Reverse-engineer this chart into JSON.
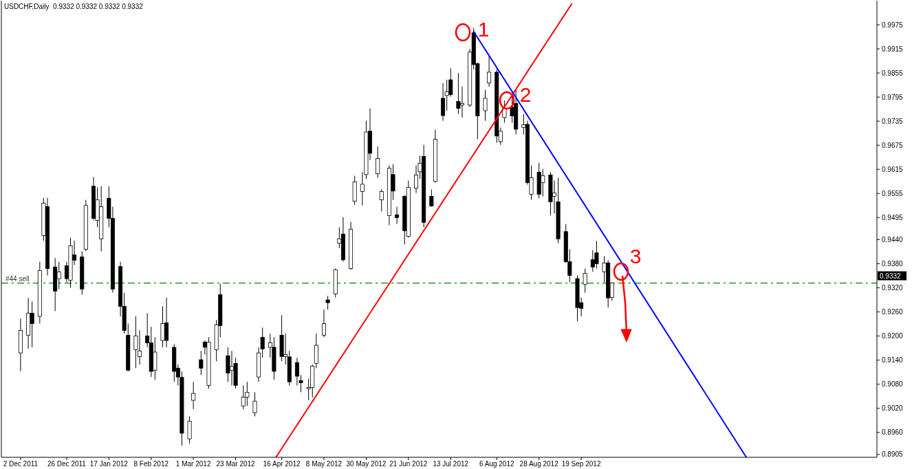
{
  "chart_data": {
    "type": "candlestick",
    "title": "USDCHF,Daily  0.9332 0.9332 0.9332 0.9332",
    "color": "#000000",
    "x": [
      "2011-12-02",
      "2011-12-06",
      "2011-12-08",
      "2011-12-12",
      "2011-12-14",
      "2011-12-16",
      "2011-12-20",
      "2011-12-22",
      "2011-12-26",
      "2011-12-28",
      "2011-12-30",
      "2012-01-03",
      "2012-01-05",
      "2012-01-09",
      "2012-01-11",
      "2012-01-13",
      "2012-01-17",
      "2012-01-19",
      "2012-01-23",
      "2012-01-25",
      "2012-01-27",
      "2012-01-31",
      "2012-02-02",
      "2012-02-06",
      "2012-02-08",
      "2012-02-10",
      "2012-02-14",
      "2012-02-16",
      "2012-02-20",
      "2012-02-22",
      "2012-02-24",
      "2012-02-28",
      "2012-03-01",
      "2012-03-05",
      "2012-03-07",
      "2012-03-09",
      "2012-03-13",
      "2012-03-15",
      "2012-03-19",
      "2012-03-21",
      "2012-03-23",
      "2012-03-27",
      "2012-03-29",
      "2012-04-02",
      "2012-04-04",
      "2012-04-06",
      "2012-04-10",
      "2012-04-12",
      "2012-04-16",
      "2012-04-18",
      "2012-04-20",
      "2012-04-24",
      "2012-04-26",
      "2012-04-30",
      "2012-05-02",
      "2012-05-04",
      "2012-05-08",
      "2012-05-10",
      "2012-05-14",
      "2012-05-16",
      "2012-05-18",
      "2012-05-22",
      "2012-05-24",
      "2012-05-28",
      "2012-05-30",
      "2012-06-01",
      "2012-06-05",
      "2012-06-07",
      "2012-06-11",
      "2012-06-13",
      "2012-06-15",
      "2012-06-19",
      "2012-06-21",
      "2012-06-25",
      "2012-06-27",
      "2012-06-29",
      "2012-07-03",
      "2012-07-05",
      "2012-07-09",
      "2012-07-11",
      "2012-07-13",
      "2012-07-17",
      "2012-07-19",
      "2012-07-23",
      "2012-07-25",
      "2012-07-27",
      "2012-07-31",
      "2012-08-02",
      "2012-08-06",
      "2012-08-08",
      "2012-08-10",
      "2012-08-14",
      "2012-08-16",
      "2012-08-20",
      "2012-08-22",
      "2012-08-24",
      "2012-08-28",
      "2012-08-30",
      "2012-09-03",
      "2012-09-05",
      "2012-09-07",
      "2012-09-11",
      "2012-09-13",
      "2012-09-17",
      "2012-09-19",
      "2012-09-21",
      "2012-09-25",
      "2012-09-27",
      "2012-10-01",
      "2012-10-03",
      "2012-10-05"
    ],
    "ohlc": [
      [
        0.9158,
        0.9243,
        0.9112,
        0.9214
      ],
      [
        0.9202,
        0.9295,
        0.9168,
        0.9257
      ],
      [
        0.9257,
        0.9286,
        0.9172,
        0.9231
      ],
      [
        0.9249,
        0.9385,
        0.9231,
        0.9363
      ],
      [
        0.945,
        0.9544,
        0.9437,
        0.9531
      ],
      [
        0.9522,
        0.9544,
        0.9351,
        0.9368
      ],
      [
        0.9372,
        0.9394,
        0.9262,
        0.9312
      ],
      [
        0.9343,
        0.9385,
        0.9317,
        0.936
      ],
      [
        0.9375,
        0.9385,
        0.9334,
        0.9343
      ],
      [
        0.9339,
        0.9445,
        0.932,
        0.9425
      ],
      [
        0.9402,
        0.9437,
        0.9377,
        0.9389
      ],
      [
        0.9397,
        0.9411,
        0.9303,
        0.9317
      ],
      [
        0.9416,
        0.9539,
        0.9411,
        0.9525
      ],
      [
        0.9573,
        0.9596,
        0.9488,
        0.9493
      ],
      [
        0.9488,
        0.957,
        0.9471,
        0.9539
      ],
      [
        0.9442,
        0.9573,
        0.9411,
        0.9522
      ],
      [
        0.9543,
        0.9573,
        0.9471,
        0.9493
      ],
      [
        0.9493,
        0.9522,
        0.9308,
        0.9317
      ],
      [
        0.9373,
        0.9385,
        0.9249,
        0.9274
      ],
      [
        0.9274,
        0.9308,
        0.9206,
        0.9214
      ],
      [
        0.9202,
        0.9231,
        0.9112,
        0.9115
      ],
      [
        0.9166,
        0.9249,
        0.912,
        0.92
      ],
      [
        0.9149,
        0.9214,
        0.9129,
        0.9163
      ],
      [
        0.92,
        0.9257,
        0.9172,
        0.9183
      ],
      [
        0.9183,
        0.9223,
        0.9098,
        0.9112
      ],
      [
        0.9115,
        0.9197,
        0.9091,
        0.916
      ],
      [
        0.9189,
        0.9274,
        0.9172,
        0.9231
      ],
      [
        0.9233,
        0.9296,
        0.9172,
        0.9189
      ],
      [
        0.9172,
        0.918,
        0.9086,
        0.9112
      ],
      [
        0.912,
        0.9129,
        0.9077,
        0.9098
      ],
      [
        0.9097,
        0.9112,
        0.8927,
        0.8958
      ],
      [
        0.8944,
        0.9,
        0.8932,
        0.8988
      ],
      [
        0.904,
        0.9086,
        0.9018,
        0.9057
      ],
      [
        0.9141,
        0.9163,
        0.9103,
        0.912
      ],
      [
        0.9185,
        0.9189,
        0.9154,
        0.9172
      ],
      [
        0.9077,
        0.9197,
        0.9069,
        0.9185
      ],
      [
        0.9166,
        0.924,
        0.9137,
        0.9228
      ],
      [
        0.9303,
        0.933,
        0.9197,
        0.9226
      ],
      [
        0.9151,
        0.9172,
        0.9086,
        0.9108
      ],
      [
        0.9115,
        0.9163,
        0.9077,
        0.9124
      ],
      [
        0.9132,
        0.9146,
        0.9069,
        0.9077
      ],
      [
        0.9026,
        0.9077,
        0.9018,
        0.9048
      ],
      [
        0.9048,
        0.9086,
        0.9026,
        0.906
      ],
      [
        0.9009,
        0.906,
        0.9,
        0.9038
      ],
      [
        0.9098,
        0.9172,
        0.9086,
        0.9158
      ],
      [
        0.9197,
        0.9221,
        0.9146,
        0.9168
      ],
      [
        0.9172,
        0.9206,
        0.9146,
        0.9183
      ],
      [
        0.9172,
        0.9197,
        0.9091,
        0.9112
      ],
      [
        0.9202,
        0.9252,
        0.9137,
        0.9149
      ],
      [
        0.9149,
        0.9206,
        0.9129,
        0.9154
      ],
      [
        0.9148,
        0.9163,
        0.9077,
        0.9086
      ],
      [
        0.9134,
        0.9146,
        0.9077,
        0.91
      ],
      [
        0.9089,
        0.9103,
        0.906,
        0.9084
      ],
      [
        0.9069,
        0.9094,
        0.904,
        0.9072
      ],
      [
        0.9072,
        0.9129,
        0.9047,
        0.9125
      ],
      [
        0.9132,
        0.9206,
        0.912,
        0.9177
      ],
      [
        0.9202,
        0.9266,
        0.9197,
        0.9231
      ],
      [
        0.929,
        0.93,
        0.9266,
        0.9283
      ],
      [
        0.9305,
        0.9368,
        0.9296,
        0.9365
      ],
      [
        0.9431,
        0.9471,
        0.9419,
        0.9442
      ],
      [
        0.9454,
        0.9496,
        0.9385,
        0.939
      ],
      [
        0.9368,
        0.9484,
        0.9365,
        0.9466
      ],
      [
        0.9536,
        0.9599,
        0.9527,
        0.9584
      ],
      [
        0.956,
        0.9608,
        0.9525,
        0.9578
      ],
      [
        0.9602,
        0.9736,
        0.9591,
        0.9708
      ],
      [
        0.971,
        0.9767,
        0.9638,
        0.9655
      ],
      [
        0.9604,
        0.9672,
        0.9594,
        0.9642
      ],
      [
        0.9539,
        0.9565,
        0.951,
        0.956
      ],
      [
        0.95,
        0.9625,
        0.9476,
        0.9618
      ],
      [
        0.9602,
        0.9628,
        0.9539,
        0.9561
      ],
      [
        0.9502,
        0.9522,
        0.9479,
        0.9495
      ],
      [
        0.9548,
        0.9551,
        0.9428,
        0.9462
      ],
      [
        0.9448,
        0.9587,
        0.9445,
        0.957
      ],
      [
        0.9568,
        0.9625,
        0.9556,
        0.9601
      ],
      [
        0.9609,
        0.9649,
        0.9591,
        0.963
      ],
      [
        0.9647,
        0.9676,
        0.9471,
        0.9483
      ],
      [
        0.9548,
        0.9565,
        0.9522,
        0.9524
      ],
      [
        0.9585,
        0.9714,
        0.9582,
        0.969
      ],
      [
        0.9792,
        0.983,
        0.9736,
        0.9749
      ],
      [
        0.9799,
        0.9838,
        0.9761,
        0.9808
      ],
      [
        0.9838,
        0.9867,
        0.9796,
        0.9801
      ],
      [
        0.9784,
        0.9855,
        0.9753,
        0.9767
      ],
      [
        0.9775,
        0.9821,
        0.9744,
        0.9779
      ],
      [
        0.9775,
        0.9915,
        0.977,
        0.9907
      ],
      [
        0.9955,
        0.9967,
        0.9864,
        0.9876
      ],
      [
        0.9878,
        0.9881,
        0.969,
        0.9748
      ],
      [
        0.9761,
        0.9813,
        0.9736,
        0.9792
      ],
      [
        0.983,
        0.9898,
        0.9821,
        0.9857
      ],
      [
        0.9857,
        0.9864,
        0.9681,
        0.9698
      ],
      [
        0.9684,
        0.9719,
        0.9676,
        0.971
      ],
      [
        0.9744,
        0.9787,
        0.9731,
        0.9767
      ],
      [
        0.977,
        0.9796,
        0.9731,
        0.9748
      ],
      [
        0.9779,
        0.9813,
        0.9702,
        0.9715
      ],
      [
        0.9719,
        0.9753,
        0.9702,
        0.9726
      ],
      [
        0.9727,
        0.9736,
        0.9577,
        0.9582
      ],
      [
        0.9553,
        0.9625,
        0.9539,
        0.9594
      ],
      [
        0.9608,
        0.9631,
        0.9543,
        0.9553
      ],
      [
        0.9582,
        0.9616,
        0.9548,
        0.9599
      ],
      [
        0.9601,
        0.9608,
        0.95,
        0.9534
      ],
      [
        0.9548,
        0.9587,
        0.9505,
        0.9556
      ],
      [
        0.9534,
        0.9594,
        0.9431,
        0.9442
      ],
      [
        0.946,
        0.9479,
        0.9382,
        0.9385
      ],
      [
        0.9385,
        0.9416,
        0.9334,
        0.9351
      ],
      [
        0.9343,
        0.9351,
        0.9237,
        0.9271
      ],
      [
        0.9283,
        0.9296,
        0.9249,
        0.9269
      ],
      [
        0.9329,
        0.9368,
        0.9308,
        0.9356
      ],
      [
        0.939,
        0.9414,
        0.936,
        0.9372
      ],
      [
        0.9407,
        0.9437,
        0.9368,
        0.938
      ],
      [
        0.936,
        0.9399,
        0.9334,
        0.9382
      ],
      [
        0.9382,
        0.9389,
        0.9271,
        0.9295
      ],
      [
        0.9296,
        0.9334,
        0.9288,
        0.9332
      ]
    ],
    "series": [
      {
        "type": "line",
        "x": [
          "2012-04-13",
          "2012-09-14"
        ],
        "values": [
          0.8898,
          1.0027
        ],
        "color": "#ff0000"
      },
      {
        "type": "line",
        "x": [
          "2012-07-25",
          "2012-12-14"
        ],
        "values": [
          0.9958,
          0.8898
        ],
        "color": "#0000ff"
      }
    ],
    "xlim": [
      "2011-11-22",
      "2013-02-20"
    ],
    "ylim": [
      0.8898,
      1.0035
    ],
    "xticks": [
      {
        "value": "2011-12-02",
        "label": "2 Dec 2011"
      },
      {
        "value": "2011-12-26",
        "label": "26 Dec 2011"
      },
      {
        "value": "2012-01-17",
        "label": "17 Jan 2012"
      },
      {
        "value": "2012-02-08",
        "label": "8 Feb 2012"
      },
      {
        "value": "2012-03-01",
        "label": "1 Mar 2012"
      },
      {
        "value": "2012-03-23",
        "label": "23 Mar 2012"
      },
      {
        "value": "2012-04-16",
        "label": "16 Apr 2012"
      },
      {
        "value": "2012-05-08",
        "label": "8 May 2012"
      },
      {
        "value": "2012-05-30",
        "label": "30 May 2012"
      },
      {
        "value": "2012-06-21",
        "label": "21 Jun 2012"
      },
      {
        "value": "2012-07-13",
        "label": "13 Jul 2012"
      },
      {
        "value": "2012-08-06",
        "label": "6 Aug 2012"
      },
      {
        "value": "2012-08-28",
        "label": "28 Aug 2012"
      },
      {
        "value": "2012-09-19",
        "label": "19 Sep 2012"
      }
    ],
    "yticks": [
      {
        "value": 0.8905,
        "label": "0.8905"
      },
      {
        "value": 0.896,
        "label": "0.8960"
      },
      {
        "value": 0.902,
        "label": "0.9020"
      },
      {
        "value": 0.908,
        "label": "0.9080"
      },
      {
        "value": 0.914,
        "label": "0.9140"
      },
      {
        "value": 0.92,
        "label": "0.9200"
      },
      {
        "value": 0.926,
        "label": "0.9260"
      },
      {
        "value": 0.932,
        "label": "0.9320"
      },
      {
        "value": 0.938,
        "label": "0.9380"
      },
      {
        "value": 0.944,
        "label": "0.9440"
      },
      {
        "value": 0.9495,
        "label": "0.9495"
      },
      {
        "value": 0.9555,
        "label": "0.9555"
      },
      {
        "value": 0.9615,
        "label": "0.9615"
      },
      {
        "value": 0.9675,
        "label": "0.9675"
      },
      {
        "value": 0.9735,
        "label": "0.9735"
      },
      {
        "value": 0.9795,
        "label": "0.9795"
      },
      {
        "value": 0.9855,
        "label": "0.9855"
      },
      {
        "value": 0.9915,
        "label": "0.9915"
      },
      {
        "value": 0.9975,
        "label": "0.9975"
      }
    ],
    "ref_lines": [
      {
        "axis": "y",
        "value": 0.9332,
        "label": "#44 sell",
        "color": "#008000",
        "line_style": "dashed"
      }
    ],
    "annotations": [
      "1",
      "2",
      "3",
      "0.9332"
    ],
    "grid": false
  }
}
